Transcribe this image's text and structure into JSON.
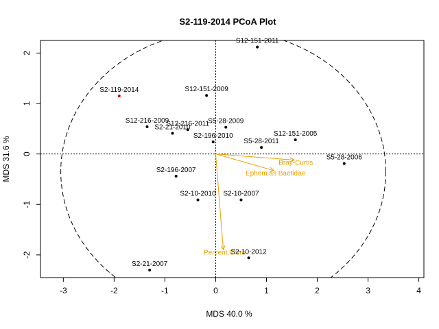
{
  "chart_data": {
    "type": "scatter",
    "title": "S2-119-2014 PCoA Plot",
    "xlabel": "MDS  40.0 %",
    "ylabel": "MDS  31.6 %",
    "xlim": [
      -3.45,
      4.1
    ],
    "ylim": [
      -2.45,
      2.25
    ],
    "xticks": [
      -3,
      -2,
      -1,
      0,
      1,
      2,
      3,
      4
    ],
    "yticks": [
      -2,
      -1,
      0,
      1,
      2
    ],
    "grid": false,
    "reference_lines": [
      0,
      0
    ],
    "ellipse": {
      "center": [
        0.15,
        -0.35
      ],
      "rx": 3.2,
      "ry": 2.8
    },
    "point_color": "#000000",
    "highlight_color": "#CC0000",
    "vector_color": "#E8A000",
    "points": [
      {
        "label": "S12-151-2011",
        "x": 0.82,
        "y": 2.12,
        "highlight": false
      },
      {
        "label": "S2-119-2014",
        "x": -1.9,
        "y": 1.15,
        "highlight": true
      },
      {
        "label": "S12-151-2009",
        "x": -0.18,
        "y": 1.16,
        "highlight": false
      },
      {
        "label": "S12-216-2009",
        "x": -1.35,
        "y": 0.54,
        "highlight": false
      },
      {
        "label": "S2-21-2010",
        "x": -0.85,
        "y": 0.41,
        "highlight": false
      },
      {
        "label": "S12-216-2011",
        "x": -0.55,
        "y": 0.48,
        "highlight": false
      },
      {
        "label": "S5-28-2009",
        "x": 0.2,
        "y": 0.53,
        "highlight": false
      },
      {
        "label": "S2-196-2010",
        "x": -0.05,
        "y": 0.24,
        "highlight": false
      },
      {
        "label": "S12-151-2005",
        "x": 1.57,
        "y": 0.28,
        "highlight": false
      },
      {
        "label": "S5-28-2011",
        "x": 0.9,
        "y": 0.13,
        "highlight": false
      },
      {
        "label": "S5-28-2006",
        "x": 2.53,
        "y": -0.19,
        "highlight": false
      },
      {
        "label": "S2-196-2007",
        "x": -0.78,
        "y": -0.44,
        "highlight": false
      },
      {
        "label": "S2-10-2010",
        "x": -0.35,
        "y": -0.91,
        "highlight": false
      },
      {
        "label": "S2-10-2007",
        "x": 0.5,
        "y": -0.91,
        "highlight": false
      },
      {
        "label": "S2-10-2012",
        "x": 0.65,
        "y": -2.06,
        "highlight": false
      },
      {
        "label": "S2-21-2007",
        "x": -1.3,
        "y": -2.3,
        "highlight": false
      }
    ],
    "vectors": [
      {
        "label": "Bray-Curtis",
        "x": 1.55,
        "y": -0.12
      },
      {
        "label": "Ephem.as Baetidae",
        "x": 1.15,
        "y": -0.33
      },
      {
        "label": "Percent.Chiro",
        "x": 0.15,
        "y": -1.9
      }
    ]
  }
}
